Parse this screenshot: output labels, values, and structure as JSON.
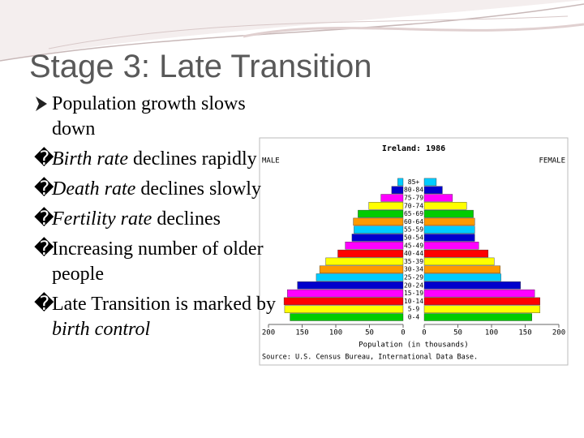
{
  "slide": {
    "title": "Stage 3: Late Transition",
    "bullets": [
      {
        "parts": [
          {
            "text": "Population growth slows down"
          }
        ]
      },
      {
        "marker": "�",
        "parts": [
          {
            "text": "Birth rate",
            "italic": true
          },
          {
            "text": " declines rapidly"
          }
        ]
      },
      {
        "marker": "�",
        "parts": [
          {
            "text": "Death rate",
            "italic": true
          },
          {
            "text": " declines slowly"
          }
        ]
      },
      {
        "marker": "�",
        "parts": [
          {
            "text": "Fertility rate",
            "italic": true
          },
          {
            "text": " declines"
          }
        ]
      },
      {
        "marker": "�",
        "parts": [
          {
            "text": "Increasing number of older people"
          }
        ]
      },
      {
        "marker": "�",
        "parts": [
          {
            "text": "Late Transition is marked by "
          },
          {
            "text": "birth control",
            "italic": true
          }
        ]
      }
    ]
  },
  "chart_data": {
    "type": "pyramid",
    "title": "Ireland: 1986",
    "left_label": "MALE",
    "right_label": "FEMALE",
    "x_label": "Population (in thousands)",
    "source": "Source: U.S. Census Bureau, International Data Base.",
    "categories": [
      "0-4",
      "5-9",
      "10-14",
      "15-19",
      "20-24",
      "25-29",
      "30-34",
      "35-39",
      "40-44",
      "45-49",
      "50-54",
      "55-59",
      "60-64",
      "65-69",
      "70-74",
      "75-79",
      "80-84",
      "85+"
    ],
    "colors": [
      "#00cc00",
      "#ffff00",
      "#ff0000",
      "#ff00ff",
      "#0000cc",
      "#00ccff",
      "#ff9900",
      "#ffff00",
      "#ff0000",
      "#ff00ff",
      "#0000cc",
      "#00ccff",
      "#ff9900",
      "#00cc00",
      "#ffff00",
      "#ff00ff",
      "#0000cc",
      "#00ccff"
    ],
    "series": [
      {
        "name": "MALE",
        "values": [
          168,
          176,
          177,
          172,
          157,
          129,
          124,
          115,
          97,
          86,
          76,
          73,
          74,
          67,
          51,
          33,
          17,
          8
        ]
      },
      {
        "name": "FEMALE",
        "values": [
          160,
          172,
          172,
          164,
          143,
          114,
          113,
          104,
          95,
          81,
          75,
          75,
          75,
          73,
          63,
          42,
          27,
          18
        ]
      }
    ],
    "xlim": [
      0,
      200
    ],
    "xticks": [
      0,
      50,
      100,
      150,
      200
    ]
  }
}
